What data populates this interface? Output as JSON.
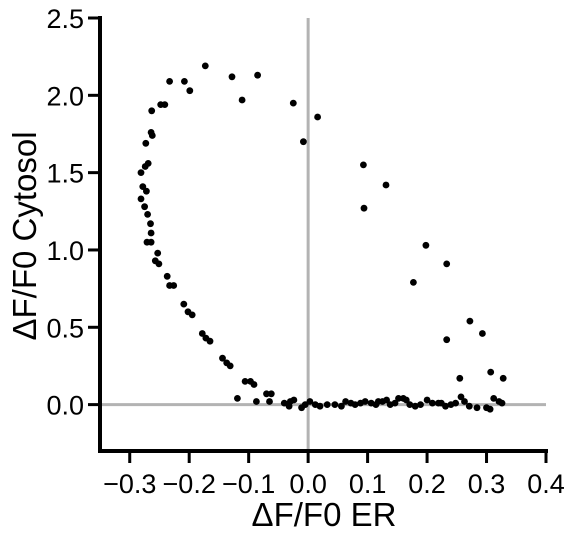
{
  "chart_data": {
    "type": "scatter",
    "title": "",
    "xlabel": "ΔF/F0 ER",
    "ylabel": "ΔF/F0 Cytosol",
    "xlim": [
      -0.35,
      0.4
    ],
    "ylim": [
      -0.3,
      2.5
    ],
    "x_ticks": [
      -0.3,
      -0.2,
      -0.1,
      0.0,
      0.1,
      0.2,
      0.3,
      0.4
    ],
    "x_tick_labels": [
      "−0.3",
      "−0.2",
      "−0.1",
      "0.0",
      "0.1",
      "0.2",
      "0.3",
      "0.4"
    ],
    "y_ticks": [
      0.0,
      0.5,
      1.0,
      1.5,
      2.0,
      2.5
    ],
    "y_tick_labels": [
      "0.0",
      "0.5",
      "1.0",
      "1.5",
      "2.0",
      "2.5"
    ],
    "zero_lines": true,
    "grid": false,
    "colors": {
      "points": "#000000",
      "zero_lines": "#b3b3b3",
      "axes": "#000000"
    },
    "series": [
      {
        "points": [
          [
            -0.263,
            1.9
          ],
          [
            -0.248,
            1.94
          ],
          [
            -0.241,
            1.94
          ],
          [
            -0.233,
            2.09
          ],
          [
            -0.208,
            2.09
          ],
          [
            -0.199,
            2.03
          ],
          [
            -0.173,
            2.19
          ],
          [
            -0.128,
            2.12
          ],
          [
            -0.111,
            1.97
          ],
          [
            -0.085,
            2.13
          ],
          [
            -0.025,
            1.95
          ],
          [
            -0.008,
            1.7
          ],
          [
            0.016,
            1.86
          ],
          [
            -0.262,
            1.74
          ],
          [
            -0.264,
            1.76
          ],
          [
            -0.273,
            1.69
          ],
          [
            -0.269,
            1.56
          ],
          [
            -0.274,
            1.54
          ],
          [
            -0.281,
            1.5
          ],
          [
            -0.278,
            1.41
          ],
          [
            -0.272,
            1.38
          ],
          [
            -0.281,
            1.33
          ],
          [
            -0.275,
            1.28
          ],
          [
            -0.27,
            1.23
          ],
          [
            -0.265,
            1.17
          ],
          [
            -0.264,
            1.11
          ],
          [
            -0.271,
            1.05
          ],
          [
            -0.264,
            1.05
          ],
          [
            -0.253,
            0.98
          ],
          [
            -0.257,
            0.93
          ],
          [
            -0.251,
            0.91
          ],
          [
            -0.237,
            0.83
          ],
          [
            -0.233,
            0.77
          ],
          [
            -0.226,
            0.77
          ],
          [
            -0.209,
            0.65
          ],
          [
            -0.202,
            0.6
          ],
          [
            -0.195,
            0.58
          ],
          [
            -0.178,
            0.46
          ],
          [
            -0.172,
            0.43
          ],
          [
            -0.165,
            0.41
          ],
          [
            -0.144,
            0.3
          ],
          [
            -0.137,
            0.27
          ],
          [
            -0.131,
            0.25
          ],
          [
            -0.106,
            0.15
          ],
          [
            -0.097,
            0.15
          ],
          [
            -0.091,
            0.13
          ],
          [
            -0.119,
            0.04
          ],
          [
            -0.087,
            0.02
          ],
          [
            -0.07,
            0.07
          ],
          [
            -0.065,
            0.02
          ],
          [
            -0.062,
            0.07
          ],
          [
            -0.04,
            0.01
          ],
          [
            -0.032,
            -0.01
          ],
          [
            -0.03,
            0.02
          ],
          [
            -0.024,
            0.03
          ],
          [
            -0.011,
            -0.02
          ],
          [
            -0.005,
            0.0
          ],
          [
            0.003,
            0.02
          ],
          [
            0.012,
            0.0
          ],
          [
            0.02,
            -0.01
          ],
          [
            0.032,
            0.0
          ],
          [
            0.045,
            0.0
          ],
          [
            0.056,
            -0.01
          ],
          [
            0.063,
            0.02
          ],
          [
            0.072,
            0.01
          ],
          [
            0.079,
            0.0
          ],
          [
            0.088,
            0.01
          ],
          [
            0.096,
            0.02
          ],
          [
            0.106,
            0.01
          ],
          [
            0.114,
            0.0
          ],
          [
            0.118,
            0.02
          ],
          [
            0.125,
            0.02
          ],
          [
            0.132,
            0.03
          ],
          [
            0.138,
            0.0
          ],
          [
            0.146,
            0.01
          ],
          [
            0.152,
            0.04
          ],
          [
            0.16,
            0.04
          ],
          [
            0.165,
            0.03
          ],
          [
            0.171,
            0.0
          ],
          [
            0.18,
            -0.01
          ],
          [
            0.189,
            0.0
          ],
          [
            0.2,
            0.03
          ],
          [
            0.209,
            0.01
          ],
          [
            0.219,
            0.01
          ],
          [
            0.224,
            0.01
          ],
          [
            0.231,
            -0.01
          ],
          [
            0.24,
            0.0
          ],
          [
            0.248,
            0.01
          ],
          [
            0.257,
            0.05
          ],
          [
            0.263,
            0.02
          ],
          [
            0.271,
            -0.01
          ],
          [
            0.284,
            -0.02
          ],
          [
            0.3,
            -0.02
          ],
          [
            0.306,
            -0.03
          ],
          [
            0.312,
            0.04
          ],
          [
            0.321,
            0.02
          ],
          [
            0.326,
            0.01
          ],
          [
            0.093,
            1.55
          ],
          [
            0.094,
            1.27
          ],
          [
            0.131,
            1.42
          ],
          [
            0.198,
            1.03
          ],
          [
            0.233,
            0.91
          ],
          [
            0.177,
            0.79
          ],
          [
            0.272,
            0.54
          ],
          [
            0.293,
            0.46
          ],
          [
            0.233,
            0.42
          ],
          [
            0.255,
            0.17
          ],
          [
            0.307,
            0.21
          ],
          [
            0.328,
            0.17
          ]
        ]
      }
    ]
  }
}
